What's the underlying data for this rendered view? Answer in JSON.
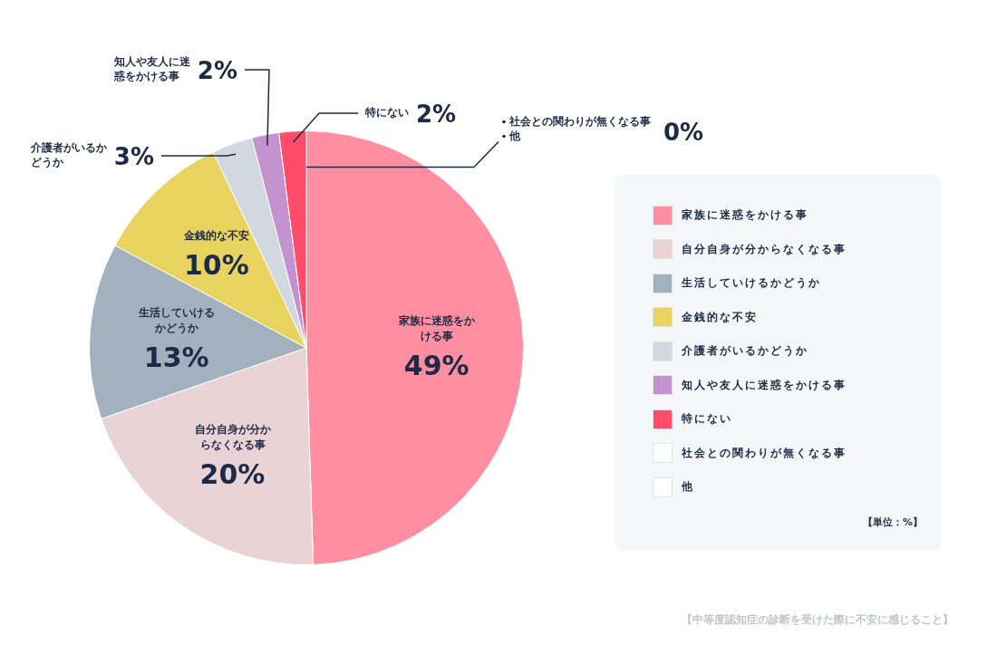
{
  "chart_data": {
    "type": "pie",
    "categories": [
      "家族に迷惑をかける事",
      "自分自身が分からなくなる事",
      "生活していけるかどうか",
      "金銭的な不安",
      "介護者がいるかどうか",
      "知人や友人に迷惑をかける事",
      "特にない",
      "社会との関わりが無くなる事",
      "他"
    ],
    "values": [
      49,
      20,
      13,
      10,
      3,
      2,
      2,
      0,
      0
    ],
    "colors": [
      "#ff8fa0",
      "#ead3d5",
      "#a3b1bf",
      "#e8d35e",
      "#d1d8df",
      "#c392cf",
      "#ff4c6a",
      "#ffffff",
      "#ffffff"
    ],
    "value_labels": [
      "49%",
      "20%",
      "13%",
      "10%",
      "3%",
      "2%",
      "2%",
      "0%",
      null
    ],
    "legend": "right",
    "annotations": [
      "【単位：%】",
      "【中等度認知症の診断を受けた際に不安に感じること】"
    ]
  }
}
